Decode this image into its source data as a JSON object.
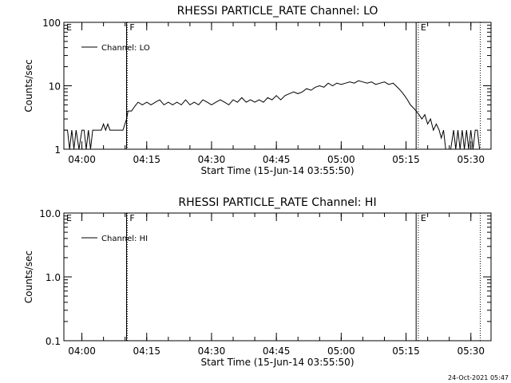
{
  "chart_data": [
    {
      "type": "line",
      "title": "RHESSI PARTICLE_RATE Channel: LO",
      "xlabel": "Start Time (15-Jun-14 03:55:50)",
      "ylabel": "Counts/sec",
      "yscale": "log",
      "ylim": [
        1,
        100
      ],
      "yticks": [
        "1",
        "10",
        "100"
      ],
      "xlim": [
        "03:55:50",
        "05:34:40"
      ],
      "xticks": [
        "04:00",
        "04:15",
        "04:30",
        "04:45",
        "05:00",
        "05:15",
        "05:30"
      ],
      "markers": [
        {
          "label": "E",
          "time": "03:55:50"
        },
        {
          "label": "F",
          "time": "04:10:30"
        },
        {
          "label": "E",
          "time": "05:17:50"
        }
      ],
      "dotted_lines": [
        "04:10:30",
        "05:17:50",
        "05:32:10"
      ],
      "solid_lines": [
        "04:10:20",
        "05:17:20"
      ],
      "legend": "Channel: LO",
      "legend_position": "top-left",
      "series": [
        {
          "name": "Channel: LO",
          "points": [
            [
              "03:55:50",
              2
            ],
            [
              "03:56:40",
              2
            ],
            [
              "03:57:10",
              1
            ],
            [
              "03:57:40",
              2
            ],
            [
              "03:58:10",
              1
            ],
            [
              "03:58:40",
              2
            ],
            [
              "03:59:20",
              1
            ],
            [
              "04:00:00",
              2
            ],
            [
              "04:00:30",
              2
            ],
            [
              "04:01:00",
              1
            ],
            [
              "04:01:30",
              2
            ],
            [
              "04:02:00",
              1
            ],
            [
              "04:02:30",
              2
            ],
            [
              "04:03:30",
              2
            ],
            [
              "04:04:00",
              2
            ],
            [
              "04:04:30",
              2
            ],
            [
              "04:05:00",
              2.5
            ],
            [
              "04:05:30",
              2
            ],
            [
              "04:06:00",
              2.5
            ],
            [
              "04:06:30",
              2
            ],
            [
              "04:07:30",
              2
            ],
            [
              "04:08:30",
              2
            ],
            [
              "04:09:30",
              2
            ],
            [
              "04:10:20",
              3
            ],
            [
              "04:10:40",
              4
            ],
            [
              "04:11:00",
              4
            ],
            [
              "04:11:30",
              4
            ],
            [
              "04:12:00",
              4.5
            ],
            [
              "04:12:30",
              5
            ],
            [
              "04:13:00",
              5.5
            ],
            [
              "04:14:00",
              5
            ],
            [
              "04:15:00",
              5.5
            ],
            [
              "04:16:00",
              5
            ],
            [
              "04:17:00",
              5.5
            ],
            [
              "04:18:00",
              6
            ],
            [
              "04:19:00",
              5
            ],
            [
              "04:20:00",
              5.5
            ],
            [
              "04:21:00",
              5
            ],
            [
              "04:22:00",
              5.5
            ],
            [
              "04:23:00",
              5
            ],
            [
              "04:24:00",
              6
            ],
            [
              "04:25:00",
              5
            ],
            [
              "04:26:00",
              5.5
            ],
            [
              "04:27:00",
              5
            ],
            [
              "04:28:00",
              6
            ],
            [
              "04:29:00",
              5.5
            ],
            [
              "04:30:00",
              5
            ],
            [
              "04:31:00",
              5.5
            ],
            [
              "04:32:00",
              6
            ],
            [
              "04:33:00",
              5.5
            ],
            [
              "04:34:00",
              5
            ],
            [
              "04:35:00",
              6
            ],
            [
              "04:36:00",
              5.5
            ],
            [
              "04:37:00",
              6.5
            ],
            [
              "04:38:00",
              5.5
            ],
            [
              "04:39:00",
              6
            ],
            [
              "04:40:00",
              5.5
            ],
            [
              "04:41:00",
              6
            ],
            [
              "04:42:00",
              5.5
            ],
            [
              "04:43:00",
              6.5
            ],
            [
              "04:44:00",
              6
            ],
            [
              "04:45:00",
              7
            ],
            [
              "04:46:00",
              6
            ],
            [
              "04:47:00",
              7
            ],
            [
              "04:48:00",
              7.5
            ],
            [
              "04:49:00",
              8
            ],
            [
              "04:50:00",
              7.5
            ],
            [
              "04:51:00",
              8
            ],
            [
              "04:52:00",
              9
            ],
            [
              "04:53:00",
              8.5
            ],
            [
              "04:54:00",
              9.5
            ],
            [
              "04:55:00",
              10
            ],
            [
              "04:56:00",
              9.5
            ],
            [
              "04:57:00",
              11
            ],
            [
              "04:58:00",
              10
            ],
            [
              "04:59:00",
              11
            ],
            [
              "05:00:00",
              10.5
            ],
            [
              "05:01:00",
              11
            ],
            [
              "05:02:00",
              11.5
            ],
            [
              "05:03:00",
              11
            ],
            [
              "05:04:00",
              12
            ],
            [
              "05:05:00",
              11.5
            ],
            [
              "05:06:00",
              11
            ],
            [
              "05:07:00",
              11.5
            ],
            [
              "05:08:00",
              10.5
            ],
            [
              "05:09:00",
              11
            ],
            [
              "05:10:00",
              11.5
            ],
            [
              "05:11:00",
              10.5
            ],
            [
              "05:12:00",
              11
            ],
            [
              "05:12:40",
              10
            ],
            [
              "05:13:20",
              9
            ],
            [
              "05:14:00",
              8
            ],
            [
              "05:14:40",
              7
            ],
            [
              "05:15:20",
              6
            ],
            [
              "05:16:00",
              5
            ],
            [
              "05:16:40",
              4.5
            ],
            [
              "05:17:20",
              4
            ],
            [
              "05:18:00",
              3.5
            ],
            [
              "05:18:40",
              3
            ],
            [
              "05:19:20",
              3.5
            ],
            [
              "05:20:00",
              2.5
            ],
            [
              "05:20:40",
              3
            ],
            [
              "05:21:20",
              2
            ],
            [
              "05:22:00",
              2.5
            ],
            [
              "05:22:40",
              2
            ],
            [
              "05:23:10",
              1.5
            ],
            [
              "05:23:40",
              2
            ],
            [
              "05:24:10",
              1
            ],
            [
              "05:24:40",
              1
            ],
            [
              "05:25:20",
              1
            ],
            [
              "05:26:00",
              2
            ],
            [
              "05:26:30",
              1
            ],
            [
              "05:27:00",
              2
            ],
            [
              "05:27:30",
              1
            ],
            [
              "05:28:00",
              2
            ],
            [
              "05:28:30",
              1
            ],
            [
              "05:29:00",
              2
            ],
            [
              "05:29:30",
              1
            ],
            [
              "05:30:00",
              2
            ],
            [
              "05:30:30",
              1
            ],
            [
              "05:31:00",
              2
            ],
            [
              "05:31:30",
              2
            ],
            [
              "05:32:00",
              1
            ]
          ]
        }
      ]
    },
    {
      "type": "line",
      "title": "RHESSI PARTICLE_RATE Channel: HI",
      "xlabel": "Start Time (15-Jun-14 03:55:50)",
      "ylabel": "Counts/sec",
      "yscale": "log",
      "ylim": [
        0.1,
        10
      ],
      "yticks": [
        "0.1",
        "1.0",
        "10.0"
      ],
      "xlim": [
        "03:55:50",
        "05:34:40"
      ],
      "xticks": [
        "04:00",
        "04:15",
        "04:30",
        "04:45",
        "05:00",
        "05:15",
        "05:30"
      ],
      "markers": [
        {
          "label": "E",
          "time": "03:55:50"
        },
        {
          "label": "F",
          "time": "04:10:30"
        },
        {
          "label": "E",
          "time": "05:17:50"
        }
      ],
      "dotted_lines": [
        "04:10:30",
        "05:17:50",
        "05:32:10"
      ],
      "solid_lines": [
        "04:10:20",
        "05:17:20"
      ],
      "legend": "Channel: HI",
      "legend_position": "top-left",
      "series": [
        {
          "name": "Channel: HI",
          "points": []
        }
      ]
    }
  ],
  "footer": {
    "stamp": "24-Oct-2021 05:47"
  }
}
